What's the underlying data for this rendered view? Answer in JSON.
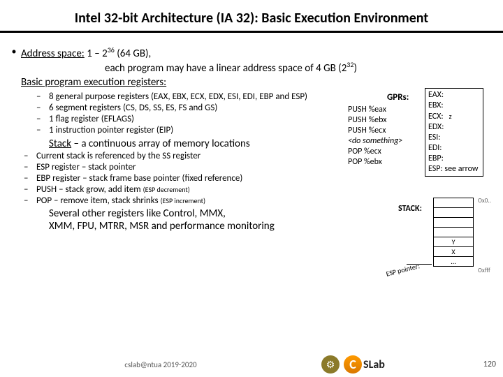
{
  "title": "Intel 32-bit Architecture (IA 32): Basic Execution Environment",
  "addr": {
    "label": "Address space:",
    "range": "1 – 2",
    "exp1": "36",
    "gb": " (64 GB),",
    "line2a": "each program may have a linear address space of 4 GB (2",
    "exp2": "32",
    "line2b": ")",
    "line3": "Basic program execution registers:"
  },
  "regs": {
    "r1": "8 general purpose registers (EAX, EBX, ECX, EDX, ESI, EDI, EBP and ESP)",
    "r2": "6 segment registers (CS, DS, SS, ES, FS and GS)",
    "r3": "1 flag register (EFLAGS)",
    "r4": "1 instruction pointer register (EIP)"
  },
  "stack_heading": "Stack",
  "stack_heading2": " – a continuous array of memory locations",
  "stack": {
    "s1": "Current stack is referenced by the SS register",
    "s2": "ESP register – stack pointer",
    "s3": "EBP register – stack frame base pointer (fixed reference)",
    "s4a": "PUSH – stack grow, add item ",
    "s4b": "(ESP decrement)",
    "s5a": "POP – remove item, stack shrinks ",
    "s5b": "(ESP increment)"
  },
  "other": {
    "l1": "Several other registers like Control, MMX,",
    "l2": "XMM, FPU, MTRR, MSR and performance monitoring"
  },
  "right": {
    "gprs": "GPRs:",
    "box": {
      "eax": "EAX:",
      "ebx": "EBX:",
      "ecx": "ECX:",
      "ecx_z": "z",
      "edx": "EDX:",
      "esi": "ESI:",
      "edi": "EDI:",
      "ebp": "EBP:",
      "esp": "ESP: see arrow"
    },
    "push": {
      "p1": "PUSH %eax",
      "p2": "PUSH %ebx",
      "p3": "PUSH %ecx",
      "p4": "<do something>",
      "p5": "POP %ecx",
      "p6": "POP %ebx"
    },
    "stack_label": "STACK:",
    "cells": {
      "y": "Y",
      "x": "X",
      "dots": "..."
    },
    "oxo": "Ox0..",
    "oxfff": "Oxfff",
    "esp_ptr": "ESP pointer:"
  },
  "footer": {
    "text": "cslab@ntua 2019-2020",
    "cslab": "SLab",
    "page": "120"
  }
}
